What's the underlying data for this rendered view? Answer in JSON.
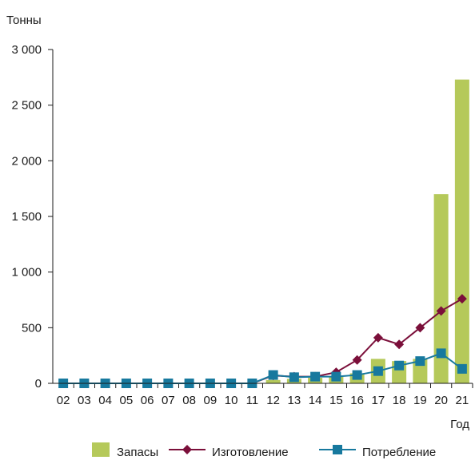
{
  "chart_data": {
    "type": "bar",
    "ylabel": "Тонны",
    "xlabel": "Год",
    "categories": [
      "02",
      "03",
      "04",
      "05",
      "06",
      "07",
      "08",
      "09",
      "10",
      "11",
      "12",
      "13",
      "14",
      "15",
      "16",
      "17",
      "18",
      "19",
      "20",
      "21"
    ],
    "ylim": [
      0,
      3000
    ],
    "yticks": [
      0,
      500,
      1000,
      1500,
      2000,
      2500,
      3000
    ],
    "ytick_labels": [
      "0",
      "500",
      "1 000",
      "1 500",
      "2 000",
      "2 500",
      "3 000"
    ],
    "grid": false,
    "legend_position": "bottom",
    "series": [
      {
        "name": "Запасы",
        "kind": "bar",
        "color": "#b5c95a",
        "values": [
          0,
          0,
          0,
          0,
          0,
          0,
          0,
          0,
          0,
          0,
          30,
          40,
          50,
          60,
          90,
          220,
          200,
          220,
          1700,
          2730
        ]
      },
      {
        "name": "Изготовление",
        "kind": "line",
        "marker": "diamond",
        "color": "#7b0f3a",
        "values": [
          0,
          0,
          0,
          0,
          0,
          0,
          0,
          0,
          0,
          0,
          70,
          60,
          60,
          100,
          210,
          410,
          350,
          500,
          650,
          760
        ]
      },
      {
        "name": "Потребление",
        "kind": "line",
        "marker": "square",
        "color": "#17799e",
        "values": [
          0,
          0,
          0,
          0,
          0,
          0,
          0,
          0,
          0,
          0,
          75,
          55,
          60,
          60,
          75,
          110,
          160,
          200,
          270,
          130
        ]
      }
    ]
  }
}
